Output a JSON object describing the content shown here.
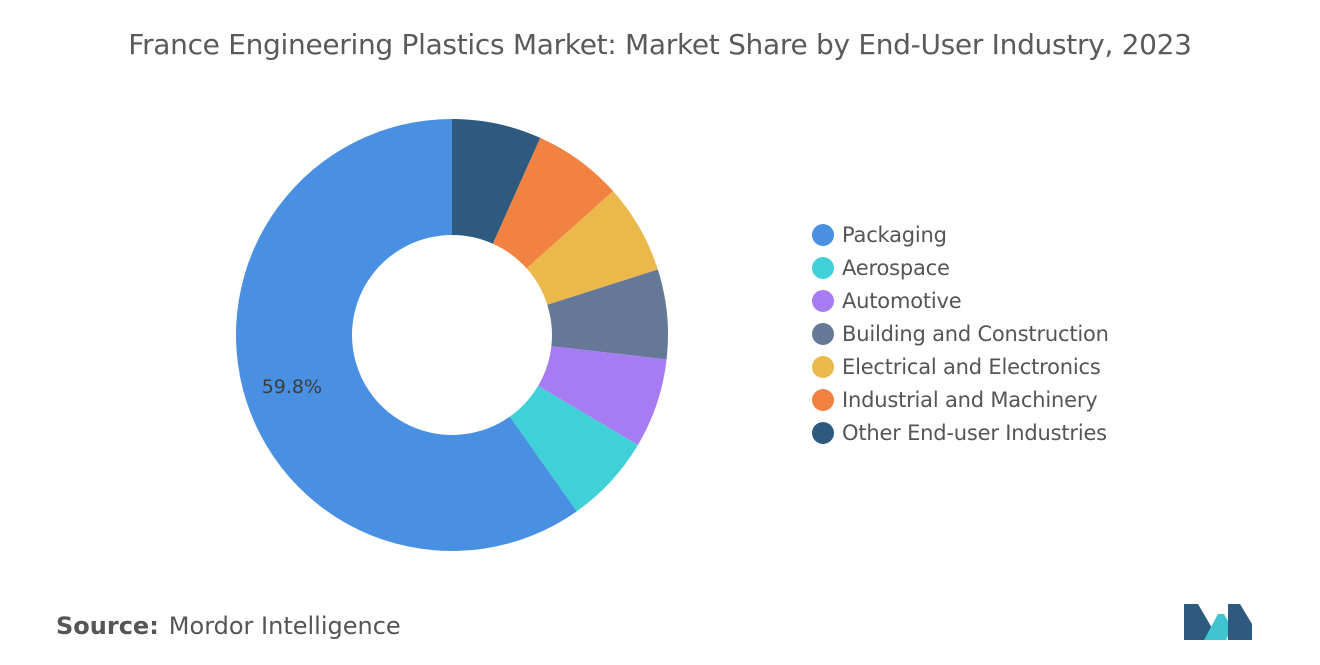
{
  "title": "France Engineering Plastics Market: Market Share by End-User Industry, 2023",
  "source": {
    "key": "Source:",
    "value": "Mordor Intelligence"
  },
  "chart_data": {
    "type": "pie",
    "title": "France Engineering Plastics Market: Market Share by End-User Industry, 2023",
    "donut": true,
    "legend_position": "right",
    "slices": [
      {
        "name": "Packaging",
        "value": 59.8,
        "color": "#4a90e2",
        "label": "59.8%"
      },
      {
        "name": "Aerospace",
        "value": 6.7,
        "color": "#40d1d8",
        "label": ""
      },
      {
        "name": "Automotive",
        "value": 6.7,
        "color": "#a77cf3",
        "label": ""
      },
      {
        "name": "Building and Construction",
        "value": 6.7,
        "color": "#667897",
        "label": ""
      },
      {
        "name": "Electrical and Electronics",
        "value": 6.7,
        "color": "#ebb94b",
        "label": ""
      },
      {
        "name": "Industrial and Machinery",
        "value": 6.7,
        "color": "#f28241",
        "label": ""
      },
      {
        "name": "Other End-user Industries",
        "value": 6.7,
        "color": "#2d5a7e",
        "label": ""
      }
    ]
  },
  "logo": {
    "icon": "mordor-intelligence-logo",
    "colors": [
      "#2d5a7e",
      "#40c4d0"
    ]
  }
}
